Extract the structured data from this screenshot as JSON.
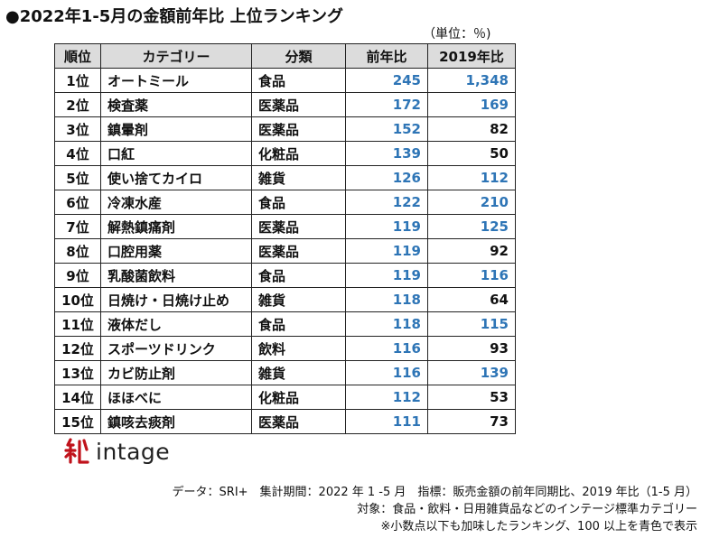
{
  "title": "●2022年1-5月の金額前年比 上位ランキング",
  "unit": "（単位：％)",
  "colors": {
    "above_100": "#2e75b6",
    "header_bg": "#dcdcdc"
  },
  "table": {
    "headers": [
      "順位",
      "カテゴリー",
      "分類",
      "前年比",
      "2019年比"
    ],
    "rows": [
      {
        "rank": "1位",
        "category": "オートミール",
        "type": "食品",
        "yoy": "245",
        "vs2019": "1,348",
        "vs2019_blue": true
      },
      {
        "rank": "2位",
        "category": "検査薬",
        "type": "医薬品",
        "yoy": "172",
        "vs2019": "169",
        "vs2019_blue": true
      },
      {
        "rank": "3位",
        "category": "鎮暈剤",
        "type": "医薬品",
        "yoy": "152",
        "vs2019": "82",
        "vs2019_blue": false
      },
      {
        "rank": "4位",
        "category": "口紅",
        "type": "化粧品",
        "yoy": "139",
        "vs2019": "50",
        "vs2019_blue": false
      },
      {
        "rank": "5位",
        "category": "使い捨てカイロ",
        "type": "雑貨",
        "yoy": "126",
        "vs2019": "112",
        "vs2019_blue": true
      },
      {
        "rank": "6位",
        "category": "冷凍水産",
        "type": "食品",
        "yoy": "122",
        "vs2019": "210",
        "vs2019_blue": true
      },
      {
        "rank": "7位",
        "category": "解熱鎮痛剤",
        "type": "医薬品",
        "yoy": "119",
        "vs2019": "125",
        "vs2019_blue": true
      },
      {
        "rank": "8位",
        "category": "口腔用薬",
        "type": "医薬品",
        "yoy": "119",
        "vs2019": "92",
        "vs2019_blue": false
      },
      {
        "rank": "9位",
        "category": "乳酸菌飲料",
        "type": "食品",
        "yoy": "119",
        "vs2019": "116",
        "vs2019_blue": true
      },
      {
        "rank": "10位",
        "category": "日焼け・日焼け止め",
        "type": "雑貨",
        "yoy": "118",
        "vs2019": "64",
        "vs2019_blue": false
      },
      {
        "rank": "11位",
        "category": "液体だし",
        "type": "食品",
        "yoy": "118",
        "vs2019": "115",
        "vs2019_blue": true
      },
      {
        "rank": "12位",
        "category": "スポーツドリンク",
        "type": "飲料",
        "yoy": "116",
        "vs2019": "93",
        "vs2019_blue": false
      },
      {
        "rank": "13位",
        "category": "カビ防止剤",
        "type": "雑貨",
        "yoy": "116",
        "vs2019": "139",
        "vs2019_blue": true
      },
      {
        "rank": "14位",
        "category": "ほほべに",
        "type": "化粧品",
        "yoy": "112",
        "vs2019": "53",
        "vs2019_blue": false
      },
      {
        "rank": "15位",
        "category": "鎮咳去痰剤",
        "type": "医薬品",
        "yoy": "111",
        "vs2019": "73",
        "vs2019_blue": false
      }
    ]
  },
  "logo": {
    "text": "intage",
    "icon": "intage-logo-icon"
  },
  "notes": [
    "データ：SRI+　集計期間：2022 年 1 -5 月　指標：販売金額の前年同期比、2019 年比（1-5 月）",
    "対象：食品・飲料・日用雑貨品などのインテージ標準カテゴリー",
    "※小数点以下も加味したランキング、100 以上を青色で表示"
  ]
}
